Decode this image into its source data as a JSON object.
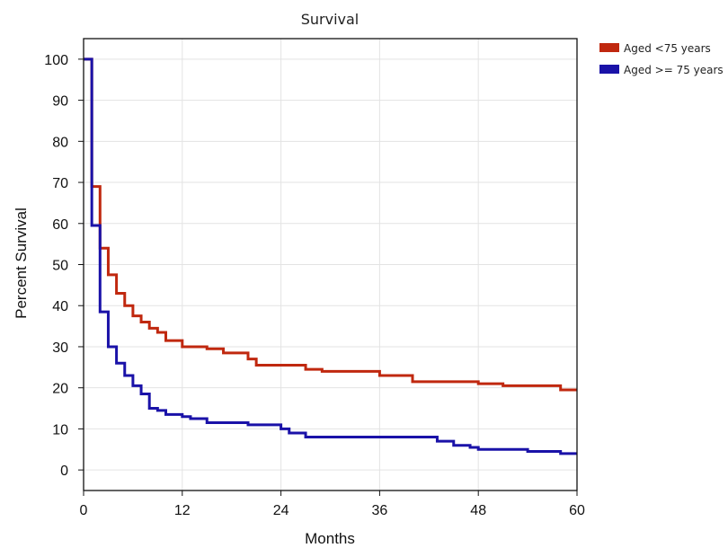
{
  "chart_data": {
    "type": "line",
    "title": "Survival",
    "xlabel": "Months",
    "ylabel": "Percent Survival",
    "xlim": [
      0,
      60
    ],
    "ylim": [
      -5,
      105
    ],
    "xticks": [
      0,
      12,
      24,
      36,
      48,
      60
    ],
    "yticks": [
      0,
      10,
      20,
      30,
      40,
      50,
      60,
      70,
      80,
      90,
      100
    ],
    "grid": true,
    "step": true,
    "legend_position": "right, outside top",
    "series": [
      {
        "name": "Aged <75 years",
        "color": "#c0280f",
        "x": [
          0,
          1,
          2,
          3,
          4,
          5,
          6,
          7,
          8,
          9,
          10,
          12,
          15,
          17,
          20,
          21,
          24,
          25,
          26,
          27,
          29,
          33,
          36,
          38,
          40,
          44,
          48,
          51,
          55,
          58,
          60
        ],
        "y": [
          100,
          69,
          54,
          47.5,
          43,
          40,
          37.5,
          36,
          34.5,
          33.5,
          31.5,
          30,
          29.5,
          28.5,
          27,
          25.5,
          25.5,
          25.5,
          25.5,
          24.5,
          24,
          24,
          23,
          23,
          21.5,
          21.5,
          21,
          20.5,
          20.5,
          19.5,
          19.5
        ]
      },
      {
        "name": "Aged >= 75 years",
        "color": "#1a12a8",
        "x": [
          0,
          1,
          2,
          3,
          4,
          5,
          6,
          7,
          8,
          9,
          10,
          12,
          13,
          15,
          16,
          20,
          24,
          25,
          27,
          30,
          36,
          39,
          42,
          43,
          45,
          47,
          48,
          50,
          54,
          58,
          60
        ],
        "y": [
          100,
          59.5,
          38.5,
          30,
          26,
          23,
          20.5,
          18.5,
          15,
          14.5,
          13.5,
          13,
          12.5,
          11.5,
          11.5,
          11,
          10,
          9,
          8,
          8,
          8,
          8,
          8,
          7,
          6,
          5.5,
          5,
          5,
          4.5,
          4,
          4
        ]
      }
    ]
  }
}
